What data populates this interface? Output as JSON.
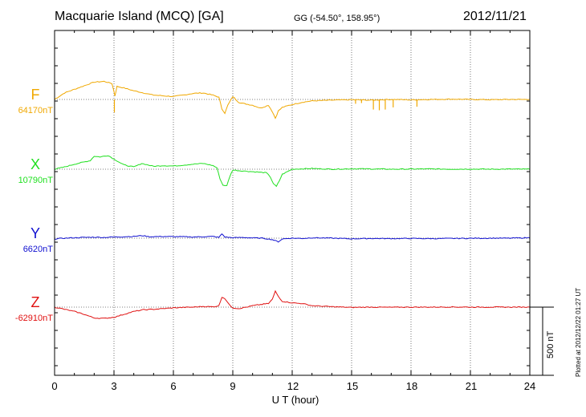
{
  "header": {
    "station": "Macquarie Island (MCQ)  [GA]",
    "coords": "GG (-54.50°, 158.95°)",
    "date": "2012/11/21"
  },
  "footer": {
    "plotted": "Plotted at 2012/12/22 01:27 UT"
  },
  "chart_data": {
    "type": "line",
    "xlabel": "U T (hour)",
    "xlim": [
      0,
      24
    ],
    "x_ticks": [
      "0",
      "3",
      "6",
      "9",
      "12",
      "15",
      "18",
      "21",
      "24"
    ],
    "scale_bar": "500 nT",
    "grid": true,
    "series": [
      {
        "name": "F",
        "baseline": "64170nT",
        "color": "#f0a800",
        "points": [
          [
            0,
            0
          ],
          [
            0.5,
            45
          ],
          [
            1,
            70
          ],
          [
            1.5,
            95
          ],
          [
            2,
            120
          ],
          [
            2.5,
            125
          ],
          [
            2.9,
            110
          ],
          [
            3.05,
            25
          ],
          [
            3.15,
            90
          ],
          [
            3.5,
            80
          ],
          [
            4,
            60
          ],
          [
            5,
            30
          ],
          [
            6,
            20
          ],
          [
            6.5,
            30
          ],
          [
            7,
            42
          ],
          [
            7.5,
            45
          ],
          [
            8,
            30
          ],
          [
            8.3,
            15
          ],
          [
            8.45,
            -65
          ],
          [
            8.6,
            -95
          ],
          [
            8.75,
            -40
          ],
          [
            9,
            20
          ],
          [
            9.3,
            -20
          ],
          [
            9.6,
            -30
          ],
          [
            10,
            -40
          ],
          [
            10.4,
            -60
          ],
          [
            10.8,
            -40
          ],
          [
            11,
            -85
          ],
          [
            11.15,
            -130
          ],
          [
            11.3,
            -80
          ],
          [
            11.5,
            -55
          ],
          [
            12,
            -35
          ],
          [
            12.5,
            -20
          ],
          [
            13,
            -10
          ],
          [
            14,
            -5
          ],
          [
            15,
            -2
          ],
          [
            16,
            -5
          ],
          [
            17,
            0
          ],
          [
            18,
            -3
          ],
          [
            19,
            0
          ],
          [
            20,
            2
          ],
          [
            21,
            0
          ],
          [
            22,
            -2
          ],
          [
            23,
            0
          ],
          [
            24,
            0
          ]
        ],
        "spikes": [
          [
            3.02,
            -90
          ],
          [
            15.2,
            -30
          ],
          [
            15.5,
            -25
          ],
          [
            16.1,
            -70
          ],
          [
            16.4,
            -75
          ],
          [
            16.7,
            -70
          ],
          [
            17.1,
            -55
          ],
          [
            18.3,
            -50
          ]
        ]
      },
      {
        "name": "X",
        "baseline": "10790nT",
        "color": "#20e020",
        "points": [
          [
            0,
            0
          ],
          [
            0.5,
            15
          ],
          [
            1,
            35
          ],
          [
            1.5,
            50
          ],
          [
            1.8,
            60
          ],
          [
            2,
            90
          ],
          [
            2.3,
            85
          ],
          [
            2.7,
            95
          ],
          [
            3,
            70
          ],
          [
            3.5,
            30
          ],
          [
            4,
            15
          ],
          [
            4.4,
            40
          ],
          [
            5,
            20
          ],
          [
            5.5,
            25
          ],
          [
            6,
            22
          ],
          [
            6.5,
            28
          ],
          [
            7,
            35
          ],
          [
            7.5,
            40
          ],
          [
            8,
            25
          ],
          [
            8.2,
            10
          ],
          [
            8.35,
            -65
          ],
          [
            8.5,
            -110
          ],
          [
            8.7,
            -115
          ],
          [
            8.85,
            -50
          ],
          [
            9,
            -5
          ],
          [
            9.3,
            -10
          ],
          [
            9.8,
            -15
          ],
          [
            10.3,
            -20
          ],
          [
            10.7,
            -25
          ],
          [
            10.9,
            -55
          ],
          [
            11.05,
            -100
          ],
          [
            11.2,
            -120
          ],
          [
            11.35,
            -80
          ],
          [
            11.5,
            -35
          ],
          [
            12,
            0
          ],
          [
            13,
            5
          ],
          [
            14,
            0
          ],
          [
            15,
            3
          ],
          [
            16,
            2
          ],
          [
            17,
            0
          ],
          [
            18,
            1
          ],
          [
            19,
            2
          ],
          [
            20,
            0
          ],
          [
            21,
            1
          ],
          [
            22,
            0
          ],
          [
            23,
            1
          ],
          [
            24,
            0
          ]
        ],
        "spikes": []
      },
      {
        "name": "Y",
        "baseline": "6620nT",
        "color": "#1010d0",
        "points": [
          [
            0,
            -5
          ],
          [
            0.5,
            0
          ],
          [
            1,
            3
          ],
          [
            1.5,
            5
          ],
          [
            2,
            7
          ],
          [
            2.5,
            5
          ],
          [
            3,
            8
          ],
          [
            3.5,
            10
          ],
          [
            4,
            12
          ],
          [
            4.4,
            18
          ],
          [
            4.8,
            10
          ],
          [
            5.5,
            12
          ],
          [
            6,
            10
          ],
          [
            6.5,
            10
          ],
          [
            7,
            8
          ],
          [
            7.5,
            10
          ],
          [
            8,
            12
          ],
          [
            8.3,
            5
          ],
          [
            8.45,
            30
          ],
          [
            8.6,
            8
          ],
          [
            9,
            3
          ],
          [
            9.5,
            5
          ],
          [
            10,
            2
          ],
          [
            10.5,
            0
          ],
          [
            11,
            -10
          ],
          [
            11.3,
            -25
          ],
          [
            11.5,
            -5
          ],
          [
            12,
            0
          ],
          [
            12.5,
            -2
          ],
          [
            13,
            3
          ],
          [
            14,
            0
          ],
          [
            15,
            -4
          ],
          [
            16,
            -2
          ],
          [
            17,
            -3
          ],
          [
            18,
            -2
          ],
          [
            19,
            -3
          ],
          [
            20,
            -2
          ],
          [
            21,
            -1
          ],
          [
            22,
            0
          ],
          [
            23,
            0
          ],
          [
            24,
            3
          ]
        ],
        "spikes": []
      },
      {
        "name": "Z",
        "baseline": "-62910nT",
        "color": "#e01010",
        "points": [
          [
            0,
            0
          ],
          [
            0.5,
            -15
          ],
          [
            1,
            -30
          ],
          [
            1.5,
            -50
          ],
          [
            2,
            -75
          ],
          [
            2.5,
            -78
          ],
          [
            3,
            -70
          ],
          [
            3.5,
            -50
          ],
          [
            4,
            -30
          ],
          [
            4.5,
            -18
          ],
          [
            5,
            -15
          ],
          [
            5.5,
            -10
          ],
          [
            6,
            -5
          ],
          [
            6.5,
            -2
          ],
          [
            7,
            0
          ],
          [
            7.5,
            5
          ],
          [
            8,
            2
          ],
          [
            8.3,
            10
          ],
          [
            8.45,
            70
          ],
          [
            8.6,
            60
          ],
          [
            8.8,
            20
          ],
          [
            9,
            -5
          ],
          [
            9.3,
            -10
          ],
          [
            9.7,
            0
          ],
          [
            10,
            10
          ],
          [
            10.4,
            18
          ],
          [
            10.8,
            25
          ],
          [
            11,
            55
          ],
          [
            11.15,
            110
          ],
          [
            11.3,
            75
          ],
          [
            11.5,
            40
          ],
          [
            12,
            30
          ],
          [
            12.5,
            25
          ],
          [
            13,
            10
          ],
          [
            14,
            3
          ],
          [
            15,
            -2
          ],
          [
            16,
            0
          ],
          [
            17,
            -1
          ],
          [
            18,
            0
          ],
          [
            19,
            0
          ],
          [
            20,
            1
          ],
          [
            21,
            0
          ],
          [
            22,
            0
          ],
          [
            23,
            0
          ],
          [
            24,
            0
          ]
        ],
        "spikes": []
      }
    ]
  }
}
